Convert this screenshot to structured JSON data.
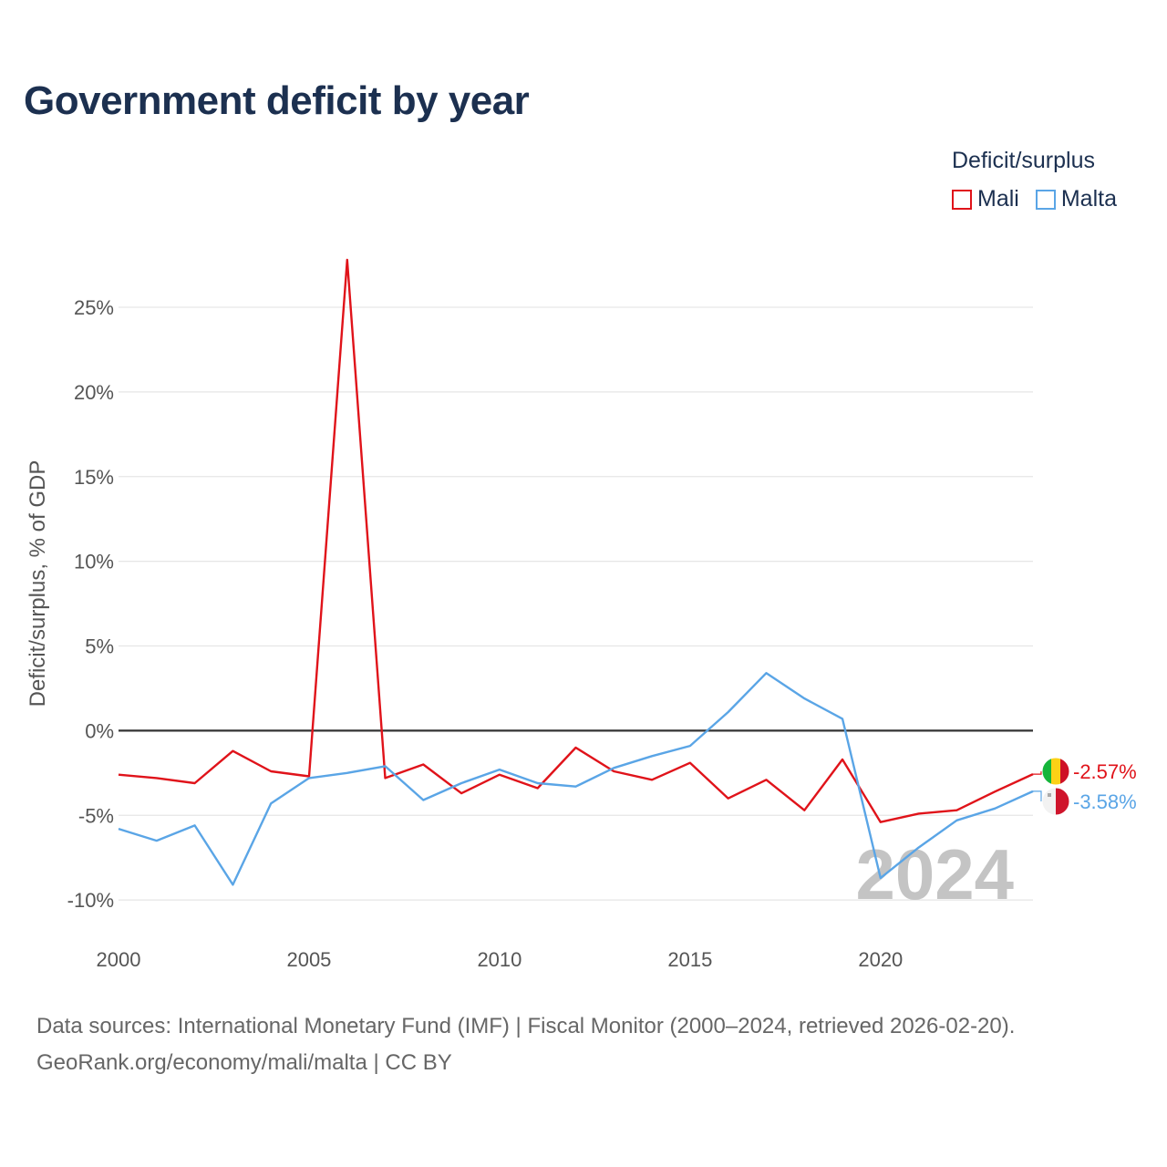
{
  "title": "Government deficit by year",
  "legend": {
    "title": "Deficit/surplus",
    "items": [
      {
        "name": "Mali",
        "color": "#e0131a"
      },
      {
        "name": "Malta",
        "color": "#5aa5e6"
      }
    ]
  },
  "year_watermark": "2024",
  "source_line1": "Data sources: International Monetary Fund (IMF) | Fiscal Monitor (2000–2024, retrieved 2026-02-20).",
  "source_line2": "GeoRank.org/economy/mali/malta | CC BY",
  "chart_data": {
    "type": "line",
    "title": "Government deficit by year",
    "xlabel": "",
    "ylabel": "Deficit/surplus, % of GDP",
    "xlim": [
      2000,
      2024
    ],
    "ylim": [
      -11.5,
      28.5
    ],
    "x_ticks": [
      2000,
      2005,
      2010,
      2015,
      2020
    ],
    "y_ticks": [
      -10,
      -5,
      0,
      5,
      10,
      15,
      20,
      25
    ],
    "y_tick_labels": [
      "-10%",
      "-5%",
      "0%",
      "5%",
      "10%",
      "15%",
      "20%",
      "25%"
    ],
    "grid": true,
    "zero_line": true,
    "legend_position": "top-right",
    "x": [
      2000,
      2001,
      2002,
      2003,
      2004,
      2005,
      2006,
      2007,
      2008,
      2009,
      2010,
      2011,
      2012,
      2013,
      2014,
      2015,
      2016,
      2017,
      2018,
      2019,
      2020,
      2021,
      2022,
      2023,
      2024
    ],
    "series": [
      {
        "name": "Mali",
        "color": "#e0131a",
        "values": [
          -2.6,
          -2.8,
          -3.1,
          -1.2,
          -2.4,
          -2.7,
          27.8,
          -2.8,
          -2.0,
          -3.7,
          -2.6,
          -3.4,
          -1.0,
          -2.4,
          -2.9,
          -1.9,
          -4.0,
          -2.9,
          -4.7,
          -1.7,
          -5.4,
          -4.9,
          -4.7,
          -3.6,
          -2.57
        ],
        "end_label": "-2.57%"
      },
      {
        "name": "Malta",
        "color": "#5aa5e6",
        "values": [
          -5.8,
          -6.5,
          -5.6,
          -9.1,
          -4.3,
          -2.8,
          -2.5,
          -2.1,
          -4.1,
          -3.1,
          -2.3,
          -3.1,
          -3.3,
          -2.2,
          -1.5,
          -0.9,
          1.1,
          3.4,
          1.9,
          0.7,
          -8.7,
          -6.9,
          -5.3,
          -4.6,
          -3.58
        ],
        "end_label": "-3.58%"
      }
    ]
  }
}
